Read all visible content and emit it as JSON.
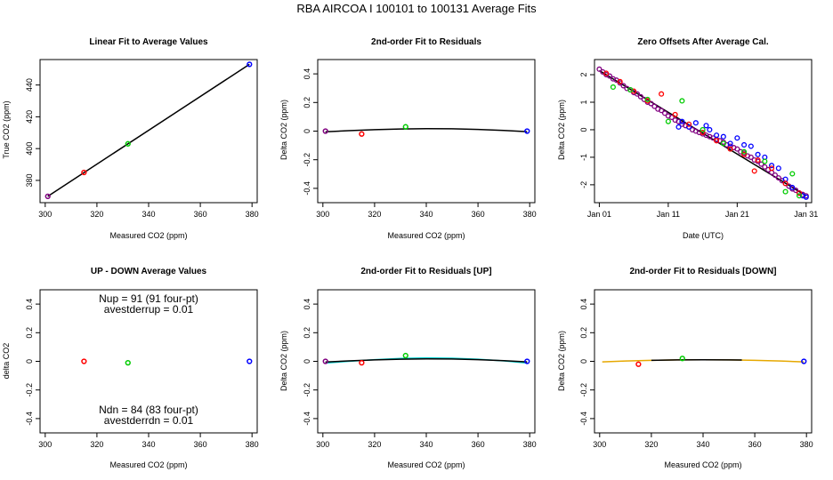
{
  "main_title": "RBA   AIRCOA I   100101 to 100131    Average Fits",
  "chart_data": [
    {
      "type": "scatter",
      "title": "Linear Fit to Average Values",
      "xlabel": "Measured CO2 (ppm)",
      "ylabel": "True CO2 (ppm)",
      "xlim": [
        298,
        382
      ],
      "ylim": [
        366,
        456
      ],
      "xticks": [
        300,
        320,
        340,
        360,
        380
      ],
      "yticks": [
        380,
        400,
        420,
        440
      ],
      "points": [
        {
          "x": 301,
          "y": 370,
          "color": "#800080"
        },
        {
          "x": 315,
          "y": 385,
          "color": "#ff0000"
        },
        {
          "x": 332,
          "y": 403,
          "color": "#00cc00"
        },
        {
          "x": 379,
          "y": 453,
          "color": "#0000ff"
        }
      ],
      "lines": [
        {
          "color": "#000000",
          "x": [
            301,
            379
          ],
          "y": [
            370,
            453
          ]
        }
      ]
    },
    {
      "type": "scatter",
      "title": "2nd-order Fit to Residuals",
      "xlabel": "Measured CO2 (ppm)",
      "ylabel": "Delta CO2 (ppm)",
      "xlim": [
        298,
        382
      ],
      "ylim": [
        -0.5,
        0.5
      ],
      "xticks": [
        300,
        320,
        340,
        360,
        380
      ],
      "yticks": [
        -0.4,
        -0.2,
        0.0,
        0.2,
        0.4
      ],
      "points": [
        {
          "x": 301,
          "y": 0.0,
          "color": "#800080"
        },
        {
          "x": 315,
          "y": -0.02,
          "color": "#ff0000"
        },
        {
          "x": 332,
          "y": 0.03,
          "color": "#00cc00"
        },
        {
          "x": 379,
          "y": 0.0,
          "color": "#0000ff"
        }
      ],
      "lines": [
        {
          "color": "#000000",
          "x": [
            301,
            310,
            320,
            330,
            340,
            350,
            360,
            370,
            379
          ],
          "y": [
            -0.005,
            0.003,
            0.01,
            0.015,
            0.017,
            0.016,
            0.012,
            0.005,
            -0.004
          ]
        }
      ]
    },
    {
      "type": "scatter",
      "title": "Zero Offsets After Average Cal.",
      "xlabel": "Date (UTC)",
      "ylabel": "Delta CO2 (ppm)",
      "xlim": [
        0.3,
        31.8
      ],
      "ylim": [
        -2.65,
        2.55
      ],
      "xticks": [
        1,
        11,
        21,
        31
      ],
      "xticklabels": [
        "Jan 01",
        "Jan 11",
        "Jan 21",
        "Jan 31"
      ],
      "yticks": [
        -2,
        -1,
        0,
        1,
        2
      ],
      "scatter_series": [
        {
          "color": "#800080",
          "x": [
            1.0,
            1.5,
            2.0,
            2.5,
            3.0,
            3.5,
            4.0,
            4.5,
            5.0,
            5.5,
            6.0,
            6.5,
            7.0,
            7.5,
            8.0,
            8.5,
            9.0,
            9.5,
            10.0,
            10.5,
            11.0,
            11.5,
            12.0,
            12.5,
            13.0,
            13.5,
            14.0,
            14.5,
            15.0,
            15.5,
            16.0,
            16.5,
            17.0,
            17.5,
            18.0,
            18.5,
            19.0,
            19.5,
            20.0,
            20.5,
            21.0,
            21.5,
            22.0,
            22.5,
            23.0,
            23.5,
            24.0,
            24.5,
            25.0,
            25.5,
            26.0,
            26.5,
            27.0,
            27.5,
            28.0,
            28.5,
            29.0,
            29.5,
            30.0,
            30.5,
            31.0
          ],
          "y": [
            2.2,
            2.1,
            2.0,
            1.95,
            1.85,
            1.8,
            1.7,
            1.6,
            1.5,
            1.45,
            1.35,
            1.3,
            1.2,
            1.1,
            1.0,
            0.95,
            0.85,
            0.75,
            0.7,
            0.6,
            0.5,
            0.45,
            0.35,
            0.3,
            0.2,
            0.15,
            0.1,
            0.0,
            -0.05,
            -0.1,
            -0.15,
            -0.2,
            -0.25,
            -0.3,
            -0.35,
            -0.4,
            -0.45,
            -0.55,
            -0.6,
            -0.65,
            -0.7,
            -0.8,
            -0.85,
            -0.95,
            -1.0,
            -1.1,
            -1.15,
            -1.25,
            -1.35,
            -1.45,
            -1.55,
            -1.65,
            -1.75,
            -1.85,
            -1.95,
            -2.05,
            -2.15,
            -2.2,
            -2.3,
            -2.35,
            -2.4
          ]
        },
        {
          "color": "#0000ff",
          "x": [
            12.5,
            13.0,
            14.0,
            15.0,
            16.5,
            17.0,
            18.0,
            19.0,
            20.0,
            21.0,
            22.0,
            23.0,
            24.0,
            25.0,
            26.0,
            27.0,
            28.0,
            29.0,
            30.0,
            30.5,
            31.0
          ],
          "y": [
            0.1,
            0.3,
            0.1,
            0.25,
            0.15,
            0.0,
            -0.2,
            -0.25,
            -0.5,
            -0.3,
            -0.55,
            -0.6,
            -0.9,
            -1.0,
            -1.3,
            -1.4,
            -1.8,
            -2.1,
            -2.3,
            -2.4,
            -2.45
          ]
        },
        {
          "color": "#ff0000",
          "x": [
            2.0,
            4.0,
            6.0,
            8.0,
            10.0,
            12.0,
            14.0,
            16.0,
            18.0,
            20.0,
            22.0,
            23.5,
            24.0,
            26.0,
            28.0,
            30.0
          ],
          "y": [
            2.05,
            1.75,
            1.4,
            1.05,
            1.3,
            0.55,
            0.2,
            -0.1,
            -0.4,
            -0.7,
            -0.9,
            -1.5,
            -1.1,
            -1.4,
            -1.95,
            -2.3
          ]
        },
        {
          "color": "#00cc00",
          "x": [
            3.0,
            5.5,
            8.0,
            11.0,
            13.0,
            16.0,
            19.0,
            22.0,
            25.0,
            28.0,
            29.0,
            30.0
          ],
          "y": [
            1.55,
            1.45,
            1.1,
            0.3,
            1.05,
            0.0,
            -0.5,
            -0.8,
            -1.15,
            -2.25,
            -1.6,
            -2.4
          ]
        }
      ],
      "lines": [
        {
          "color": "#000000",
          "x": [
            1,
            31
          ],
          "y": [
            2.15,
            -2.4
          ]
        }
      ]
    },
    {
      "type": "scatter",
      "title": "UP - DOWN Average Values",
      "xlabel": "Measured CO2 (ppm)",
      "ylabel": "delta CO2",
      "xlim": [
        298,
        382
      ],
      "ylim": [
        -0.5,
        0.5
      ],
      "xticks": [
        300,
        320,
        340,
        360,
        380
      ],
      "yticks": [
        -0.4,
        -0.2,
        0.0,
        0.2,
        0.4
      ],
      "points": [
        {
          "x": 315,
          "y": 0.0,
          "color": "#ff0000"
        },
        {
          "x": 332,
          "y": -0.01,
          "color": "#00cc00"
        },
        {
          "x": 379,
          "y": 0.0,
          "color": "#0000ff"
        }
      ],
      "annotations": {
        "top_line1": "Nup = 91 (91 four-pt)",
        "top_line2": "avestderrup =  0.01",
        "bottom_line1": "Ndn = 84 (83 four-pt)",
        "bottom_line2": "avestderrdn =  0.01"
      }
    },
    {
      "type": "scatter",
      "title": "2nd-order Fit to Residuals [UP]",
      "xlabel": "Measured CO2 (ppm)",
      "ylabel": "Delta CO2 (ppm)",
      "xlim": [
        298,
        382
      ],
      "ylim": [
        -0.5,
        0.5
      ],
      "xticks": [
        300,
        320,
        340,
        360,
        380
      ],
      "yticks": [
        -0.4,
        -0.2,
        0.0,
        0.2,
        0.4
      ],
      "points": [
        {
          "x": 301,
          "y": 0.0,
          "color": "#800080"
        },
        {
          "x": 315,
          "y": -0.01,
          "color": "#ff0000"
        },
        {
          "x": 332,
          "y": 0.04,
          "color": "#00cc00"
        },
        {
          "x": 379,
          "y": 0.0,
          "color": "#0000ff"
        }
      ],
      "lines": [
        {
          "color": "#00cccc",
          "x": [
            301,
            310,
            320,
            330,
            340,
            350,
            360,
            370,
            379
          ],
          "y": [
            -0.012,
            0.0,
            0.012,
            0.02,
            0.024,
            0.022,
            0.015,
            0.003,
            -0.012
          ]
        },
        {
          "color": "#000000",
          "x": [
            301,
            310,
            320,
            330,
            340,
            350,
            360,
            370,
            379
          ],
          "y": [
            -0.005,
            0.003,
            0.01,
            0.015,
            0.017,
            0.016,
            0.012,
            0.005,
            -0.004
          ]
        }
      ]
    },
    {
      "type": "scatter",
      "title": "2nd-order Fit to Residuals [DOWN]",
      "xlabel": "Measured CO2 (ppm)",
      "ylabel": "Delta CO2 (ppm)",
      "xlim": [
        298,
        382
      ],
      "ylim": [
        -0.5,
        0.5
      ],
      "xticks": [
        300,
        320,
        340,
        360,
        380
      ],
      "yticks": [
        -0.4,
        -0.2,
        0.0,
        0.2,
        0.4
      ],
      "points": [
        {
          "x": 315,
          "y": -0.02,
          "color": "#ff0000"
        },
        {
          "x": 332,
          "y": 0.02,
          "color": "#00cc00"
        },
        {
          "x": 379,
          "y": 0.0,
          "color": "#0000ff"
        }
      ],
      "lines": [
        {
          "color": "#e6a800",
          "x": [
            301,
            310,
            320,
            330,
            340,
            350,
            360,
            370,
            379
          ],
          "y": [
            -0.004,
            0.002,
            0.007,
            0.01,
            0.011,
            0.01,
            0.007,
            0.002,
            -0.004
          ]
        },
        {
          "color": "#000000",
          "x": [
            320,
            330,
            340,
            350,
            355
          ],
          "y": [
            0.007,
            0.01,
            0.011,
            0.01,
            0.009
          ]
        }
      ]
    }
  ]
}
